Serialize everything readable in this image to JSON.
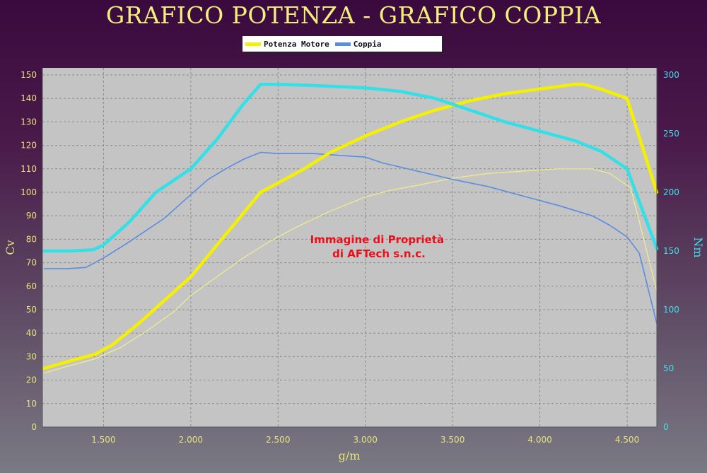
{
  "chart_data": {
    "type": "line",
    "title": "GRAFICO POTENZA - GRAFICO COPPIA",
    "xlabel": "g/m",
    "ylabel_left": "Cv",
    "ylabel_right": "Nm",
    "xlim": [
      1150,
      4670
    ],
    "ylim_left": [
      0,
      153
    ],
    "ylim_right": [
      0,
      306
    ],
    "x_ticks": [
      {
        "value": 1500,
        "label": "1.500"
      },
      {
        "value": 2000,
        "label": "2.000"
      },
      {
        "value": 2500,
        "label": "2.500"
      },
      {
        "value": 3000,
        "label": "3.000"
      },
      {
        "value": 3500,
        "label": "3.500"
      },
      {
        "value": 4000,
        "label": "4.000"
      },
      {
        "value": 4500,
        "label": "4.500"
      }
    ],
    "y_left_ticks": [
      0,
      10,
      20,
      30,
      40,
      50,
      60,
      70,
      80,
      90,
      100,
      110,
      120,
      130,
      140,
      150
    ],
    "y_right_ticks": [
      0,
      50,
      100,
      150,
      200,
      250,
      300
    ],
    "grid": true,
    "legend": {
      "placement": "top-center",
      "entries": [
        {
          "label": "Potenza Motore",
          "color": "#f5f000"
        },
        {
          "label": "Coppia",
          "color": "#5a8de0"
        }
      ]
    },
    "annotation": "Immagine di Proprietà\ndi AFTech s.n.c.",
    "series": [
      {
        "name": "Potenza Motore",
        "axis": "left",
        "color": "#f5f000",
        "width": 4.5,
        "x": [
          1160,
          1300,
          1450,
          1550,
          1700,
          1850,
          2000,
          2100,
          2200,
          2300,
          2400,
          2500,
          2650,
          2800,
          3000,
          3200,
          3400,
          3600,
          3800,
          4000,
          4200,
          4250,
          4350,
          4500,
          4670
        ],
        "y": [
          25,
          28,
          31,
          35,
          44,
          54,
          64,
          73,
          82,
          91,
          100,
          104,
          110,
          117,
          124,
          130,
          135,
          139,
          142,
          144,
          146,
          146,
          144,
          140,
          100
        ]
      },
      {
        "name": "Coppia",
        "axis": "right",
        "color": "#33e0e8",
        "width": 4.5,
        "x": [
          1160,
          1300,
          1440,
          1500,
          1650,
          1800,
          2000,
          2150,
          2300,
          2400,
          2500,
          2700,
          3000,
          3200,
          3400,
          3600,
          3800,
          4000,
          4200,
          4350,
          4500,
          4670
        ],
        "y": [
          150,
          150,
          151,
          155,
          175,
          200,
          220,
          245,
          275,
          292,
          292,
          291,
          289,
          286,
          280,
          270,
          260,
          252,
          244,
          235,
          220,
          152
        ]
      },
      {
        "axis": "left",
        "color": "#f0ef8a",
        "width": 1.2,
        "x": [
          1160,
          1300,
          1450,
          1600,
          1750,
          1900,
          2000,
          2150,
          2300,
          2450,
          2600,
          2800,
          3000,
          3150,
          3300,
          3500,
          3700,
          3900,
          4100,
          4300,
          4400,
          4520,
          4670
        ],
        "y": [
          23,
          26,
          29,
          34,
          41,
          49,
          56,
          64,
          72,
          79,
          85,
          92,
          98,
          101,
          103,
          106,
          108,
          109,
          110,
          110,
          108,
          102,
          58
        ]
      },
      {
        "axis": "right",
        "color": "#5a8de0",
        "width": 1.6,
        "x": [
          1160,
          1300,
          1400,
          1500,
          1650,
          1850,
          2000,
          2100,
          2200,
          2300,
          2400,
          2500,
          2700,
          3000,
          3100,
          3300,
          3500,
          3700,
          3900,
          4100,
          4300,
          4400,
          4500,
          4570,
          4670
        ],
        "y": [
          135,
          135,
          136,
          144,
          158,
          178,
          198,
          211,
          220,
          228,
          234,
          233,
          233,
          230,
          225,
          218,
          211,
          205,
          197,
          189,
          180,
          172,
          162,
          148,
          88
        ]
      }
    ]
  }
}
